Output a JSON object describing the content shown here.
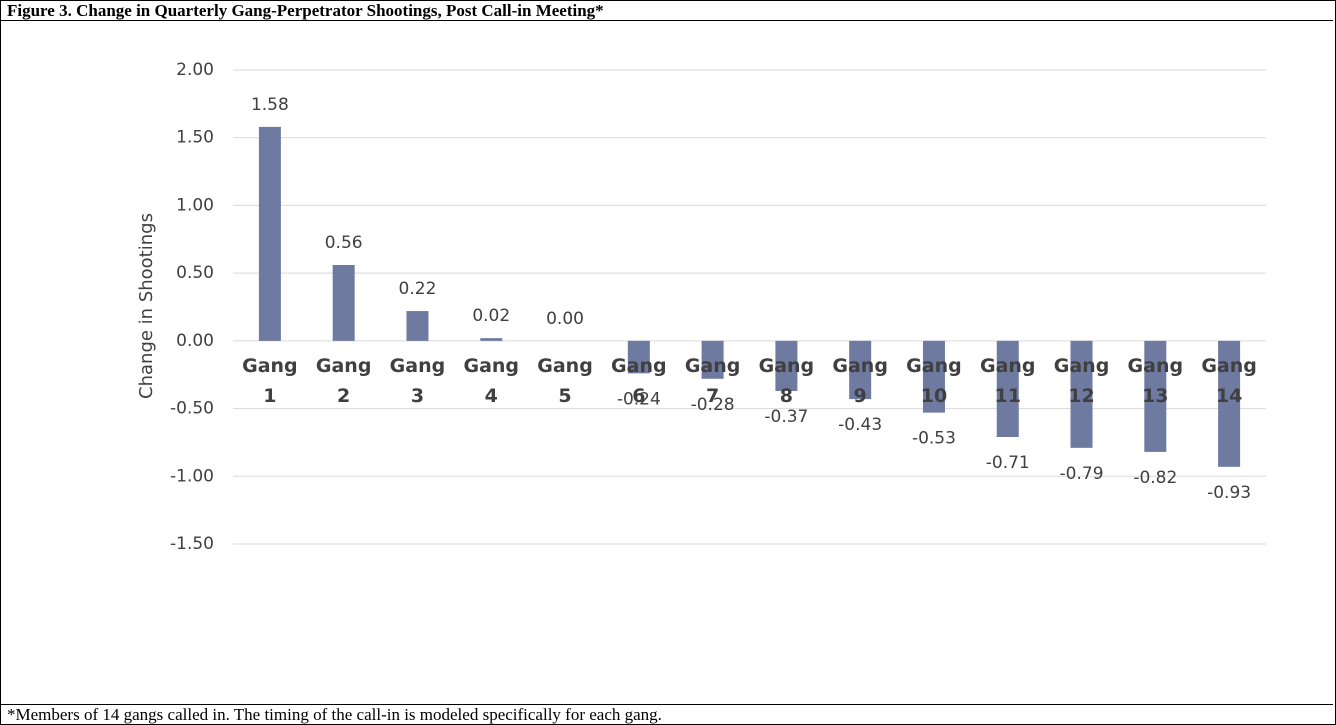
{
  "chart_data": {
    "type": "bar",
    "title": "Figure 3. Change in Quarterly Gang-Perpetrator Shootings, Post Call-in Meeting*",
    "y_label": "Change in Shootings",
    "categories": [
      "Gang 1",
      "Gang 2",
      "Gang 3",
      "Gang 4",
      "Gang 5",
      "Gang 6",
      "Gang 7",
      "Gang 8",
      "Gang 9",
      "Gang 10",
      "Gang 11",
      "Gang 12",
      "Gang 13",
      "Gang 14"
    ],
    "values": [
      1.58,
      0.56,
      0.22,
      0.02,
      0,
      -0.24,
      -0.28,
      -0.37,
      -0.43,
      -0.53,
      -0.71,
      -0.79,
      -0.82,
      -0.93
    ],
    "value_labels": [
      "1.58",
      "0.56",
      "0.22",
      "0.02",
      "0.00",
      "-0.24",
      "-0.28",
      "-0.37",
      "-0.43",
      "-0.53",
      "-0.71",
      "-0.79",
      "-0.82",
      "-0.93"
    ],
    "color": "#6f7aa0",
    "ylim": [
      -1.5,
      2
    ],
    "yticks": [
      {
        "value": -1.5,
        "label": "-1.50"
      },
      {
        "value": -1,
        "label": "-1.00"
      },
      {
        "value": -0.5,
        "label": "-0.50"
      },
      {
        "value": 0,
        "label": "0.00"
      },
      {
        "value": 0.5,
        "label": "0.50"
      },
      {
        "value": 1,
        "label": "1.00"
      },
      {
        "value": 1.5,
        "label": "1.50"
      },
      {
        "value": 2,
        "label": "2.00"
      }
    ],
    "grid": true,
    "footnote": "*Members of 14 gangs called in. The timing of the call-in is modeled specifically for each gang."
  }
}
